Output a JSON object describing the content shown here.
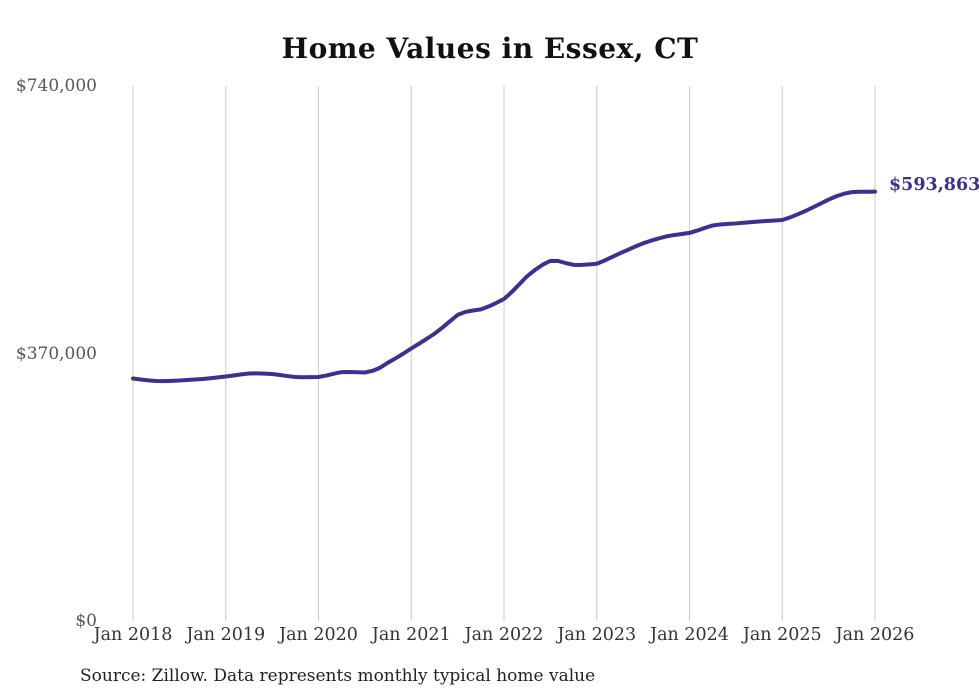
{
  "page": {
    "background_color": "#ffffff"
  },
  "chart_data": {
    "type": "line",
    "title": "Home Values in Essex, CT",
    "source_note": "Source: Zillow. Data represents monthly typical home value",
    "end_label": "$593,863",
    "final_value": 593863,
    "line_color": "#3a3191",
    "grid_color": "#cccccc",
    "grid": "vertical-only",
    "legend": "none",
    "xlabel": "",
    "ylabel": "",
    "ylim": [
      0,
      740000
    ],
    "y_ticks": [
      0,
      370000,
      740000
    ],
    "y_tick_labels": [
      "$0",
      "$370,000",
      "$740,000"
    ],
    "x_tick_labels": [
      "Jan 2018",
      "Jan 2019",
      "Jan 2020",
      "Jan 2021",
      "Jan 2022",
      "Jan 2023",
      "Jan 2024",
      "Jan 2025",
      "Jan 2026"
    ],
    "x_start": "2018-01",
    "x_step": "month",
    "values": [
      335400,
      334000,
      332800,
      332000,
      331800,
      332200,
      332700,
      333300,
      334000,
      334700,
      335800,
      337000,
      338200,
      339600,
      341100,
      342300,
      342500,
      342200,
      341600,
      340300,
      338800,
      337500,
      337200,
      337300,
      337500,
      339500,
      342000,
      344300,
      344500,
      344000,
      343700,
      346000,
      350500,
      357400,
      363500,
      370000,
      377000,
      383500,
      390300,
      397300,
      405500,
      414500,
      423400,
      427500,
      429500,
      431000,
      435000,
      440000,
      445400,
      455000,
      466000,
      477000,
      485500,
      492800,
      498100,
      498000,
      495000,
      492600,
      492500,
      493200,
      494200,
      498500,
      503500,
      508600,
      513300,
      518000,
      522400,
      526000,
      529200,
      532000,
      533800,
      535300,
      536800,
      540000,
      543800,
      547100,
      548500,
      549300,
      549900,
      550800,
      551700,
      552600,
      553300,
      554000,
      554700,
      558200,
      562500,
      567100,
      572300,
      577600,
      582900,
      587500,
      591000,
      593200,
      593700,
      593800,
      593863
    ]
  }
}
